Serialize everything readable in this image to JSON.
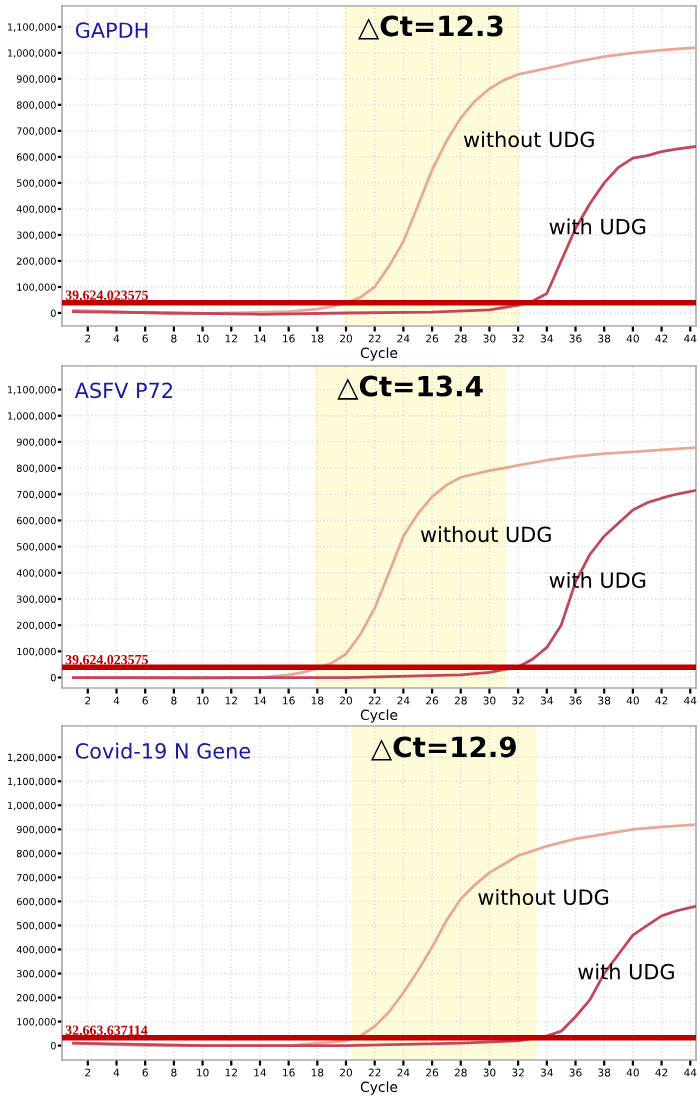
{
  "chart_data": [
    {
      "type": "line",
      "title": "GAPDH",
      "xlabel": "Cycle",
      "xlim": [
        0.2,
        44.4
      ],
      "xticks": [
        2,
        4,
        6,
        8,
        10,
        12,
        14,
        16,
        18,
        20,
        22,
        24,
        26,
        28,
        30,
        32,
        34,
        36,
        38,
        40,
        42,
        44
      ],
      "ylim": [
        -50000,
        1180000
      ],
      "yticks": [
        {
          "value": 0,
          "label": "0"
        },
        {
          "value": 100000,
          "label": "100,000"
        },
        {
          "value": 200000,
          "label": "200,000"
        },
        {
          "value": 300000,
          "label": "300,000"
        },
        {
          "value": 400000,
          "label": "400,000"
        },
        {
          "value": 500000,
          "label": "500,000"
        },
        {
          "value": 600000,
          "label": "600,000"
        },
        {
          "value": 700000,
          "label": "700,000"
        },
        {
          "value": 800000,
          "label": "800,000"
        },
        {
          "value": 900000,
          "label": "900,000"
        },
        {
          "value": 1000000,
          "label": "1,000,000"
        },
        {
          "value": 1100000,
          "label": "1,100,000"
        }
      ],
      "grid": true,
      "legend": false,
      "marker": "none",
      "line_style": "solid",
      "series": [
        {
          "name": "without UDG",
          "color": "#e8a898",
          "x": [
            1,
            4,
            8,
            12,
            16,
            18,
            19,
            20,
            21,
            22,
            23,
            24,
            25,
            26,
            27,
            28,
            29,
            30,
            31,
            32,
            34,
            36,
            38,
            40,
            42,
            44.4
          ],
          "values": [
            10000,
            5000,
            -3000,
            0,
            5000,
            15000,
            25000,
            37000,
            60000,
            100000,
            180000,
            275000,
            410000,
            550000,
            660000,
            750000,
            815000,
            862000,
            895000,
            917000,
            940000,
            965000,
            985000,
            1000000,
            1010000,
            1020000
          ]
        },
        {
          "name": "with UDG",
          "color": "#c0485a",
          "x": [
            1,
            8,
            14,
            20,
            26,
            30,
            32,
            33,
            34,
            35,
            36,
            37,
            38,
            39,
            40,
            41,
            42,
            43,
            44.4
          ],
          "values": [
            5000,
            0,
            -5000,
            0,
            3000,
            12000,
            30000,
            45000,
            75000,
            200000,
            325000,
            420000,
            500000,
            560000,
            595000,
            605000,
            620000,
            630000,
            640000
          ]
        }
      ],
      "ref_lines": [
        {
          "axis": "y",
          "value": 39624.023575,
          "label": "39,624.023575",
          "color": "#c00000"
        }
      ],
      "bands": [
        {
          "axis": "x",
          "from": 19.8,
          "to": 32.1,
          "label": "△Ct=12.3",
          "color": "#fdfbd8"
        }
      ]
    },
    {
      "type": "line",
      "title": "ASFV P72",
      "xlabel": "Cycle",
      "xlim": [
        0.2,
        44.4
      ],
      "xticks": [
        2,
        4,
        6,
        8,
        10,
        12,
        14,
        16,
        18,
        20,
        22,
        24,
        26,
        28,
        30,
        32,
        34,
        36,
        38,
        40,
        42,
        44
      ],
      "ylim": [
        -40000,
        1190000
      ],
      "yticks": [
        {
          "value": 0,
          "label": "0"
        },
        {
          "value": 100000,
          "label": "100,000"
        },
        {
          "value": 200000,
          "label": "200,000"
        },
        {
          "value": 300000,
          "label": "300,000"
        },
        {
          "value": 400000,
          "label": "400,000"
        },
        {
          "value": 500000,
          "label": "500,000"
        },
        {
          "value": 600000,
          "label": "600,000"
        },
        {
          "value": 700000,
          "label": "700,000"
        },
        {
          "value": 800000,
          "label": "800,000"
        },
        {
          "value": 900000,
          "label": "900,000"
        },
        {
          "value": 1000000,
          "label": "1,000,000"
        },
        {
          "value": 1100000,
          "label": "1,100,000"
        }
      ],
      "grid": true,
      "legend": false,
      "marker": "none",
      "line_style": "solid",
      "series": [
        {
          "name": "without UDG",
          "color": "#e8a898",
          "x": [
            1,
            10,
            14,
            16,
            17,
            18,
            19,
            20,
            21,
            22,
            23,
            24,
            25,
            26,
            27,
            28,
            30,
            32,
            34,
            36,
            38,
            40,
            42,
            44.4
          ],
          "values": [
            0,
            -3000,
            0,
            10000,
            20000,
            35000,
            55000,
            90000,
            165000,
            265000,
            400000,
            540000,
            625000,
            690000,
            735000,
            765000,
            790000,
            810000,
            830000,
            845000,
            855000,
            862000,
            870000,
            878000
          ]
        },
        {
          "name": "with UDG",
          "color": "#c0485a",
          "x": [
            1,
            14,
            20,
            28,
            30,
            31,
            32,
            33,
            34,
            35,
            36,
            37,
            38,
            39,
            40,
            41,
            42,
            43,
            44.4
          ],
          "values": [
            0,
            0,
            0,
            10000,
            20000,
            30000,
            40000,
            70000,
            115000,
            200000,
            365000,
            470000,
            540000,
            590000,
            640000,
            668000,
            685000,
            700000,
            715000
          ]
        }
      ],
      "ref_lines": [
        {
          "axis": "y",
          "value": 39624.023575,
          "label": "39,624.023575",
          "color": "#c00000"
        }
      ],
      "bands": [
        {
          "axis": "x",
          "from": 17.8,
          "to": 31.2,
          "label": "△Ct=13.4",
          "color": "#fdfbd8"
        }
      ]
    },
    {
      "type": "line",
      "title": "Covid-19 N Gene",
      "xlabel": "Cycle",
      "xlim": [
        0.2,
        44.4
      ],
      "xticks": [
        2,
        4,
        6,
        8,
        10,
        12,
        14,
        16,
        18,
        20,
        22,
        24,
        26,
        28,
        30,
        32,
        34,
        36,
        38,
        40,
        42,
        44
      ],
      "ylim": [
        -60000,
        1330000
      ],
      "yticks": [
        {
          "value": 0,
          "label": "0"
        },
        {
          "value": 100000,
          "label": "100,000"
        },
        {
          "value": 200000,
          "label": "200,000"
        },
        {
          "value": 300000,
          "label": "300,000"
        },
        {
          "value": 400000,
          "label": "400,000"
        },
        {
          "value": 500000,
          "label": "500,000"
        },
        {
          "value": 600000,
          "label": "600,000"
        },
        {
          "value": 700000,
          "label": "700,000"
        },
        {
          "value": 800000,
          "label": "800,000"
        },
        {
          "value": 900000,
          "label": "900,000"
        },
        {
          "value": 1000000,
          "label": "1,000,000"
        },
        {
          "value": 1100000,
          "label": "1,100,000"
        },
        {
          "value": 1200000,
          "label": "1,200,000"
        }
      ],
      "grid": true,
      "legend": false,
      "marker": "none",
      "line_style": "solid",
      "series": [
        {
          "name": "without UDG",
          "color": "#e8a898",
          "x": [
            1,
            6,
            12,
            16,
            18,
            20,
            21,
            22,
            23,
            24,
            25,
            26,
            27,
            28,
            29,
            30,
            32,
            34,
            36,
            38,
            40,
            42,
            44.4
          ],
          "values": [
            10000,
            0,
            0,
            0,
            10000,
            20000,
            40000,
            80000,
            140000,
            220000,
            310000,
            410000,
            520000,
            610000,
            670000,
            720000,
            790000,
            830000,
            860000,
            880000,
            900000,
            910000,
            920000
          ]
        },
        {
          "name": "with UDG",
          "color": "#c0485a",
          "x": [
            1,
            10,
            20,
            28,
            32,
            34,
            35,
            36,
            37,
            38,
            39,
            40,
            41,
            42,
            43,
            44.4
          ],
          "values": [
            10000,
            0,
            0,
            10000,
            20000,
            40000,
            60000,
            120000,
            190000,
            300000,
            380000,
            460000,
            500000,
            540000,
            560000,
            580000
          ]
        }
      ],
      "ref_lines": [
        {
          "axis": "y",
          "value": 32663.637114,
          "label": "32,663.637114",
          "color": "#c00000"
        }
      ],
      "bands": [
        {
          "axis": "x",
          "from": 20.4,
          "to": 33.3,
          "label": "△Ct=12.9",
          "color": "#fdfbd8"
        }
      ]
    }
  ]
}
